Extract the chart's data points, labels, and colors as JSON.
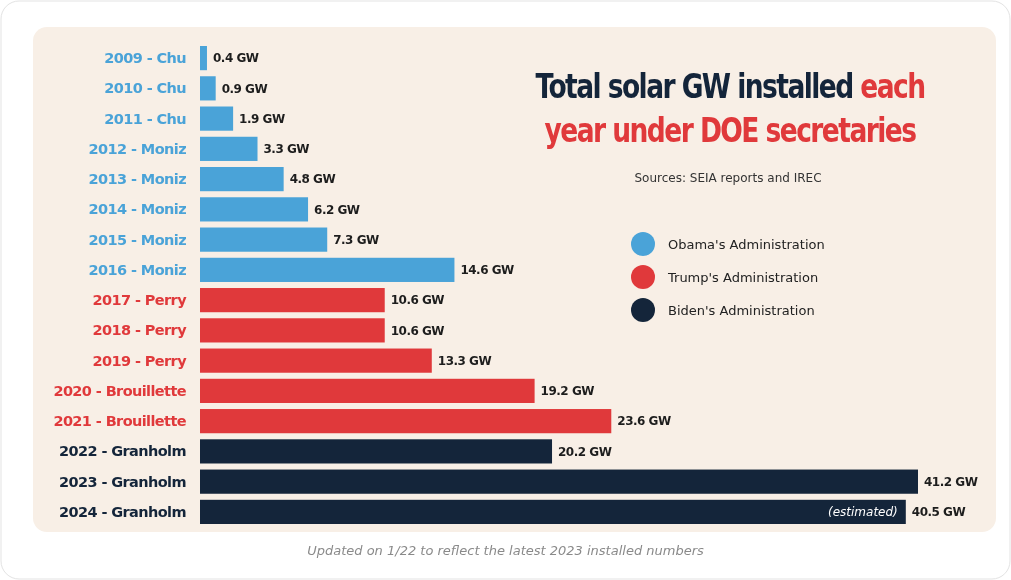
{
  "chart_data": {
    "type": "bar",
    "orientation": "horizontal",
    "title": "Total solar GW installed each year under DOE secretaries",
    "subtitle": "Sources: SEIA reports and IREC",
    "categories": [
      "2009 - Chu",
      "2010 - Chu",
      "2011 - Chu",
      "2012 - Moniz",
      "2013 - Moniz",
      "2014 - Moniz",
      "2015 - Moniz",
      "2016 - Moniz",
      "2017 - Perry",
      "2018 - Perry",
      "2019 - Perry",
      "2020 - Brouillette",
      "2021 - Brouillette",
      "2022 - Granholm",
      "2023 - Granholm",
      "2024 - Granholm"
    ],
    "series": [
      {
        "name": "Obama's Administration",
        "color": "#4aa3d8",
        "values": [
          0.4,
          0.9,
          1.9,
          3.3,
          4.8,
          6.2,
          7.3,
          14.6,
          null,
          null,
          null,
          null,
          null,
          null,
          null,
          null
        ],
        "value_labels": [
          "0.4 GW",
          "0.9 GW",
          "1.9 GW",
          "3.3 GW",
          "4.8 GW",
          "6.2 GW",
          "7.3 GW",
          "14.6 GW",
          null,
          null,
          null,
          null,
          null,
          null,
          null,
          null
        ]
      },
      {
        "name": "Trump's Administration",
        "color": "#e0393b",
        "values": [
          null,
          null,
          null,
          null,
          null,
          null,
          null,
          null,
          10.6,
          10.6,
          13.3,
          19.2,
          23.6,
          null,
          null,
          null
        ],
        "value_labels": [
          null,
          null,
          null,
          null,
          null,
          null,
          null,
          null,
          "10.6 GW",
          "10.6 GW",
          "13.3 GW",
          "19.2 GW",
          "23.6 GW",
          null,
          null,
          null
        ]
      },
      {
        "name": "Biden's Administration",
        "color": "#14253a",
        "values": [
          null,
          null,
          null,
          null,
          null,
          null,
          null,
          null,
          null,
          null,
          null,
          null,
          null,
          20.2,
          41.2,
          40.5
        ],
        "value_labels": [
          null,
          null,
          null,
          null,
          null,
          null,
          null,
          null,
          null,
          null,
          null,
          null,
          null,
          "20.2 GW",
          "41.2 GW",
          "40.5 GW"
        ]
      }
    ],
    "annotations": [
      {
        "text": "(estimated)",
        "x": 40.5,
        "y": "2024 - Granholm"
      },
      "Updated on 1/22 to reflect the latest 2023 installed numbers"
    ],
    "legend": "top right"
  }
}
